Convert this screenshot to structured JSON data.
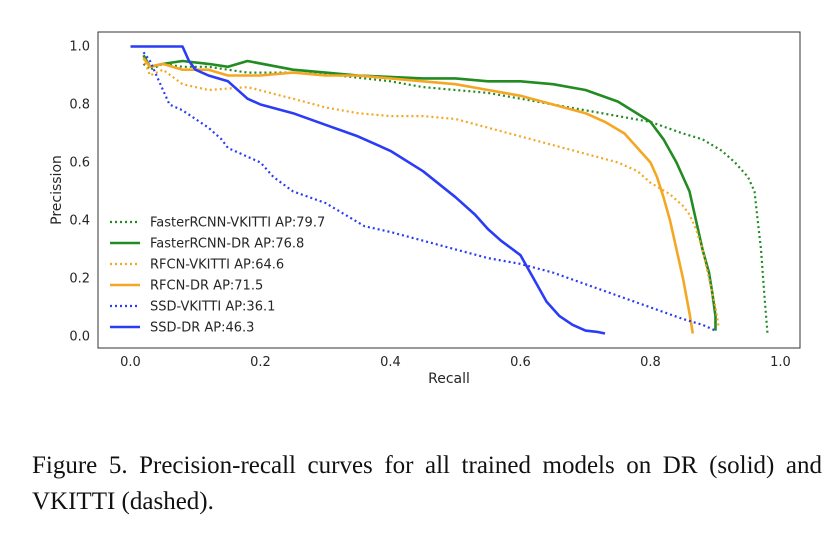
{
  "caption": "Figure 5. Precision-recall curves for all trained models on DR (solid) and VKITTI (dashed).",
  "chart_data": {
    "type": "line",
    "title": "",
    "xlabel": "Recall",
    "ylabel": "Precission",
    "xlim": [
      -0.05,
      1.03
    ],
    "ylim": [
      -0.04,
      1.05
    ],
    "xticks": [
      0.0,
      0.2,
      0.4,
      0.6,
      0.8,
      1.0
    ],
    "xtick_labels": [
      "0.0",
      "0.2",
      "0.4",
      "0.6",
      "0.8",
      "1.0"
    ],
    "yticks": [
      0.0,
      0.2,
      0.4,
      0.6,
      0.8,
      1.0
    ],
    "ytick_labels": [
      "0.0",
      "0.2",
      "0.4",
      "0.6",
      "0.8",
      "1.0"
    ],
    "grid": false,
    "legend_position": "lower-left",
    "series": [
      {
        "name": "FasterRCNN-VKITTI AP:79.7",
        "color": "#228b22",
        "style": "dotted",
        "x": [
          0.02,
          0.03,
          0.05,
          0.08,
          0.12,
          0.18,
          0.25,
          0.32,
          0.4,
          0.45,
          0.5,
          0.55,
          0.6,
          0.65,
          0.7,
          0.75,
          0.8,
          0.85,
          0.88,
          0.91,
          0.93,
          0.95,
          0.96,
          0.965,
          0.97,
          0.975,
          0.98
        ],
        "y": [
          0.94,
          0.92,
          0.94,
          0.93,
          0.93,
          0.91,
          0.91,
          0.9,
          0.88,
          0.86,
          0.85,
          0.84,
          0.82,
          0.8,
          0.78,
          0.76,
          0.74,
          0.7,
          0.68,
          0.64,
          0.6,
          0.55,
          0.5,
          0.4,
          0.3,
          0.15,
          0.01
        ]
      },
      {
        "name": "FasterRCNN-DR AP:76.8",
        "color": "#228b22",
        "style": "solid",
        "x": [
          0.02,
          0.03,
          0.05,
          0.08,
          0.12,
          0.15,
          0.18,
          0.25,
          0.3,
          0.35,
          0.45,
          0.5,
          0.55,
          0.6,
          0.65,
          0.7,
          0.75,
          0.8,
          0.82,
          0.84,
          0.86,
          0.87,
          0.88,
          0.89,
          0.895,
          0.9,
          0.9
        ],
        "y": [
          0.97,
          0.93,
          0.94,
          0.95,
          0.94,
          0.93,
          0.95,
          0.92,
          0.91,
          0.9,
          0.89,
          0.89,
          0.88,
          0.88,
          0.87,
          0.85,
          0.81,
          0.74,
          0.68,
          0.6,
          0.5,
          0.4,
          0.3,
          0.22,
          0.15,
          0.07,
          0.02
        ]
      },
      {
        "name": "RFCN-VKITTI AP:64.6",
        "color": "#f5a623",
        "style": "dotted",
        "x": [
          0.02,
          0.03,
          0.05,
          0.08,
          0.12,
          0.18,
          0.25,
          0.3,
          0.35,
          0.4,
          0.45,
          0.5,
          0.55,
          0.6,
          0.65,
          0.7,
          0.75,
          0.78,
          0.8,
          0.83,
          0.85,
          0.86,
          0.87,
          0.88,
          0.89,
          0.9,
          0.905
        ],
        "y": [
          0.96,
          0.9,
          0.92,
          0.87,
          0.85,
          0.86,
          0.82,
          0.79,
          0.77,
          0.76,
          0.76,
          0.75,
          0.72,
          0.69,
          0.66,
          0.63,
          0.6,
          0.57,
          0.53,
          0.49,
          0.45,
          0.42,
          0.37,
          0.3,
          0.2,
          0.1,
          0.03
        ]
      },
      {
        "name": "RFCN-DR AP:71.5",
        "color": "#f5a623",
        "style": "solid",
        "x": [
          0.02,
          0.03,
          0.05,
          0.08,
          0.12,
          0.15,
          0.2,
          0.25,
          0.3,
          0.35,
          0.4,
          0.45,
          0.5,
          0.55,
          0.6,
          0.65,
          0.7,
          0.73,
          0.76,
          0.78,
          0.8,
          0.81,
          0.82,
          0.83,
          0.84,
          0.85,
          0.86,
          0.865
        ],
        "y": [
          0.96,
          0.93,
          0.94,
          0.92,
          0.92,
          0.9,
          0.9,
          0.91,
          0.9,
          0.9,
          0.89,
          0.88,
          0.87,
          0.85,
          0.83,
          0.8,
          0.77,
          0.74,
          0.7,
          0.65,
          0.6,
          0.55,
          0.48,
          0.4,
          0.3,
          0.2,
          0.08,
          0.01
        ]
      },
      {
        "name": "SSD-VKITTI AP:36.1",
        "color": "#2a3cf5",
        "style": "dotted",
        "x": [
          0.02,
          0.03,
          0.04,
          0.06,
          0.08,
          0.1,
          0.12,
          0.14,
          0.15,
          0.17,
          0.2,
          0.22,
          0.25,
          0.3,
          0.33,
          0.36,
          0.4,
          0.45,
          0.5,
          0.55,
          0.6,
          0.65,
          0.7,
          0.75,
          0.8,
          0.85,
          0.88,
          0.9
        ],
        "y": [
          0.98,
          0.95,
          0.9,
          0.8,
          0.78,
          0.75,
          0.72,
          0.68,
          0.65,
          0.63,
          0.6,
          0.55,
          0.5,
          0.46,
          0.42,
          0.38,
          0.36,
          0.33,
          0.3,
          0.27,
          0.25,
          0.22,
          0.18,
          0.14,
          0.1,
          0.06,
          0.04,
          0.02
        ]
      },
      {
        "name": "SSD-DR AP:46.3",
        "color": "#2a3cf5",
        "style": "solid",
        "x": [
          0.0,
          0.02,
          0.05,
          0.08,
          0.09,
          0.1,
          0.12,
          0.15,
          0.18,
          0.2,
          0.25,
          0.3,
          0.35,
          0.4,
          0.45,
          0.5,
          0.53,
          0.55,
          0.57,
          0.6,
          0.62,
          0.64,
          0.66,
          0.68,
          0.7,
          0.72,
          0.73
        ],
        "y": [
          1.0,
          1.0,
          1.0,
          1.0,
          0.95,
          0.92,
          0.9,
          0.88,
          0.82,
          0.8,
          0.77,
          0.73,
          0.69,
          0.64,
          0.57,
          0.48,
          0.42,
          0.37,
          0.33,
          0.28,
          0.2,
          0.12,
          0.07,
          0.04,
          0.02,
          0.015,
          0.01
        ]
      }
    ]
  }
}
